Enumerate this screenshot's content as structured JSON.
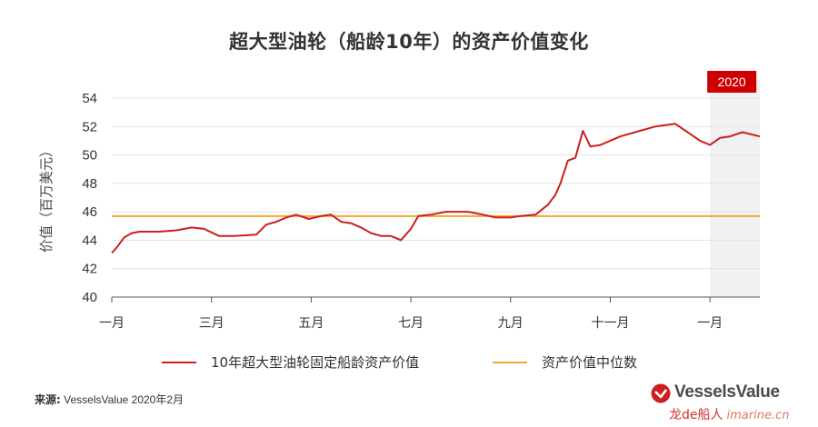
{
  "title": "超大型油轮（船龄10年）的资产价值变化",
  "source_label": "来源:",
  "source_text": "VesselsValue 2020年2月",
  "logo": {
    "brand": "VesselsValue",
    "watermark_cn": "龙de船人",
    "watermark_url": "imarine.cn"
  },
  "colors": {
    "series": "#cc1f1f",
    "median": "#f0a830",
    "highlight_bg": "#f1f1f1",
    "badge": "#cc0000"
  },
  "chart_data": {
    "type": "line",
    "title": "超大型油轮（船龄10年）的资产价值变化",
    "ylabel": "价值（百万美元）",
    "ylim": [
      40,
      54
    ],
    "yticks": [
      40,
      42,
      44,
      46,
      48,
      50,
      52,
      54
    ],
    "x_ticks": [
      "一月",
      "三月",
      "五月",
      "七月",
      "九月",
      "十一月",
      "一月"
    ],
    "x_range_months": [
      0,
      13
    ],
    "highlight": {
      "label": "2020",
      "from_month": 12,
      "to_month": 13
    },
    "series": [
      {
        "name": "10年超大型油轮固定船龄资产价值",
        "x": [
          0,
          0.1,
          0.25,
          0.4,
          0.55,
          0.75,
          0.95,
          1.3,
          1.6,
          1.85,
          2.15,
          2.45,
          2.9,
          3.1,
          3.3,
          3.5,
          3.7,
          3.95,
          4.2,
          4.4,
          4.6,
          4.8,
          5.0,
          5.2,
          5.4,
          5.6,
          5.8,
          6.0,
          6.15,
          6.4,
          6.55,
          6.7,
          6.9,
          7.15,
          7.45,
          7.7,
          8.0,
          8.2,
          8.5,
          8.75,
          8.9,
          9.0,
          9.15,
          9.3,
          9.45,
          9.6,
          9.8,
          10.0,
          10.2,
          10.5,
          10.9,
          11.3,
          11.55,
          11.8,
          12.0,
          12.2,
          12.4,
          12.65,
          13.0
        ],
        "values": [
          43.1,
          43.5,
          44.2,
          44.5,
          44.6,
          44.6,
          44.6,
          44.7,
          44.9,
          44.8,
          44.3,
          44.3,
          44.4,
          45.1,
          45.3,
          45.6,
          45.8,
          45.5,
          45.7,
          45.8,
          45.3,
          45.2,
          44.9,
          44.5,
          44.3,
          44.3,
          44.0,
          44.8,
          45.7,
          45.8,
          45.9,
          46.0,
          46.0,
          46.0,
          45.8,
          45.6,
          45.6,
          45.7,
          45.8,
          46.5,
          47.2,
          48.0,
          49.6,
          49.8,
          51.7,
          50.6,
          50.7,
          51.0,
          51.3,
          51.6,
          52.0,
          52.2,
          51.6,
          51.0,
          50.7,
          51.2,
          51.3,
          51.6,
          51.3
        ]
      },
      {
        "name": "资产价值中位数",
        "value": 45.7
      }
    ]
  }
}
